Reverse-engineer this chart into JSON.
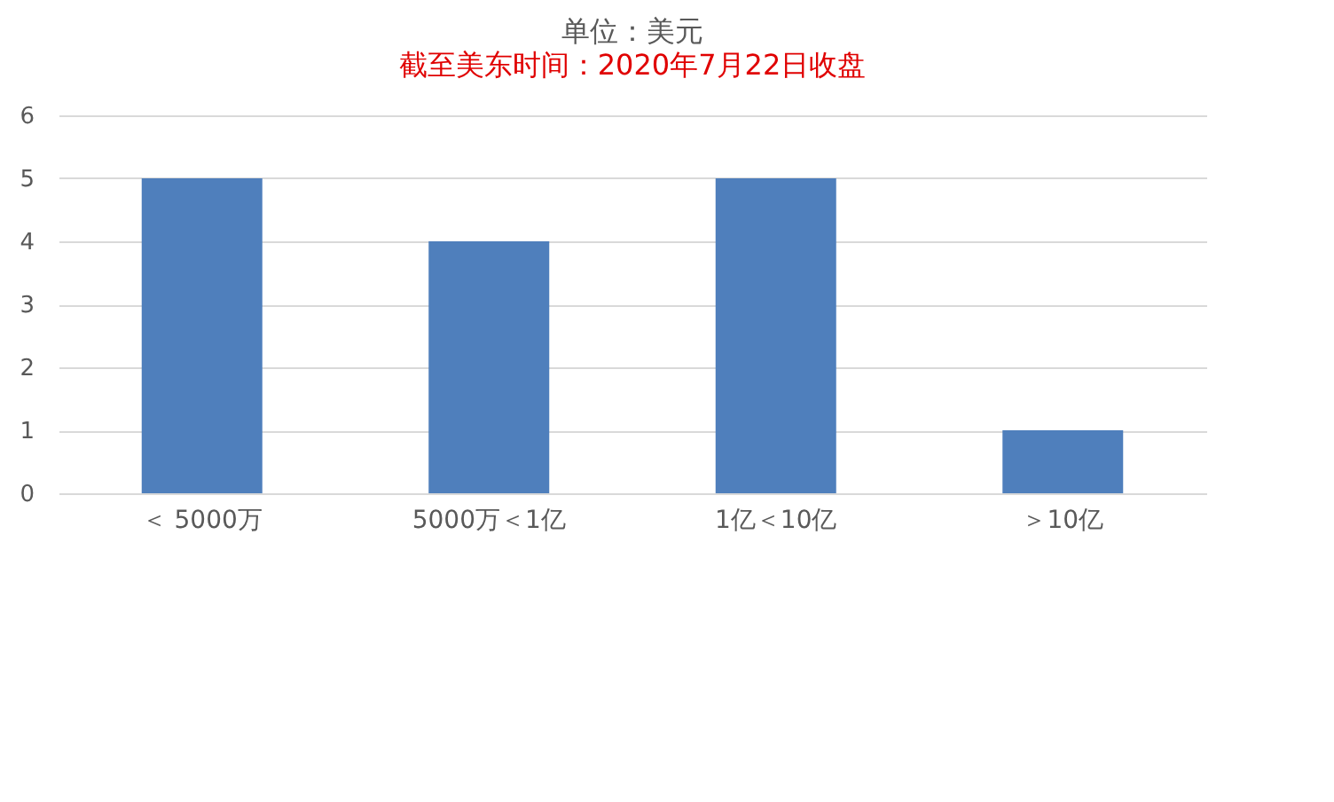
{
  "chart_data": {
    "type": "bar",
    "title": "单位：美元",
    "subtitle": "截至美东时间：2020年7月22日收盘",
    "categories": [
      "＜ 5000万",
      "5000万＜1亿",
      "1亿＜10亿",
      "＞10亿"
    ],
    "values": [
      5,
      4,
      5,
      1
    ],
    "color": "#4f7fbc",
    "ylim": [
      0,
      6
    ],
    "yticks": [
      0,
      1,
      2,
      3,
      4,
      5,
      6
    ],
    "grid": "y"
  }
}
